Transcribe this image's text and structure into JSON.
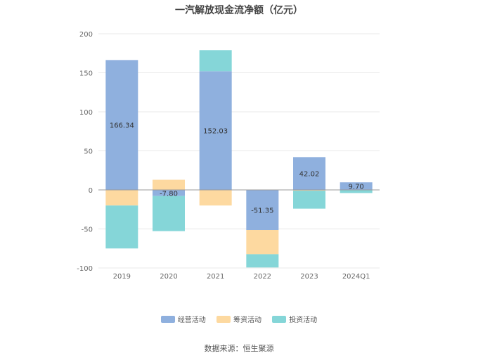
{
  "chart_data": {
    "type": "bar",
    "stacked": true,
    "title": "一汽解放现金流净额（亿元）",
    "categories": [
      "2019",
      "2020",
      "2021",
      "2022",
      "2023",
      "2024Q1"
    ],
    "ylim": [
      -100,
      200
    ],
    "yticks": [
      200,
      150,
      100,
      50,
      0,
      -50,
      -100
    ],
    "series": [
      {
        "name": "经营活动",
        "color": "#8fb0de",
        "values": [
          166.34,
          -7.8,
          152.03,
          -51.35,
          42.02,
          9.7
        ]
      },
      {
        "name": "筹资活动",
        "color": "#fdd9a0",
        "values": [
          -20,
          13,
          -20,
          -31,
          -1,
          0
        ]
      },
      {
        "name": "投资活动",
        "color": "#85d6d8",
        "values": [
          -55,
          -45,
          27,
          -17,
          -23,
          -4
        ]
      }
    ],
    "data_labels": [
      "166.34",
      "-7.80",
      "152.03",
      "-51.35",
      "42.02",
      "9.70"
    ],
    "legend_position": "bottom",
    "source": "数据来源：恒生聚源"
  }
}
